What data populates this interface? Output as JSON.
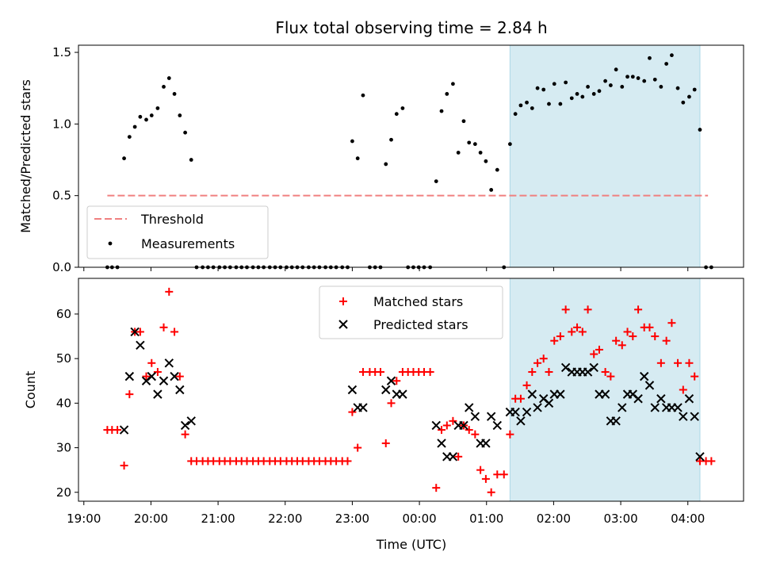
{
  "chart_data": {
    "title": "Flux total observing time = 2.84 h",
    "xlabel": "Time (UTC)",
    "x_tick_labels": [
      "19:00",
      "20:00",
      "21:00",
      "22:00",
      "23:00",
      "00:00",
      "01:00",
      "02:00",
      "03:00",
      "04:00"
    ],
    "x_ticks_hours": [
      19,
      20,
      21,
      22,
      23,
      24,
      25,
      26,
      27,
      28
    ],
    "xlim_hours": [
      18.92,
      28.83
    ],
    "highlight_span_hours": [
      25.35,
      28.18
    ],
    "highlight_color": "#add8e6",
    "panels": [
      {
        "type": "scatter",
        "ylabel": "Matched/Predicted stars",
        "ylim": [
          0,
          1.55
        ],
        "y_ticks": [
          0.0,
          0.5,
          1.0,
          1.5
        ],
        "y_tick_labels": [
          "0.0",
          "0.5",
          "1.0",
          "1.5"
        ],
        "legend_position": "lower-left",
        "threshold": {
          "name": "Threshold",
          "value": 0.5,
          "x_range_hours": [
            19.35,
            28.3
          ],
          "color": "#f08080"
        },
        "series": [
          {
            "name": "Measurements",
            "color": "#000000",
            "marker": "dot",
            "x_hours": [
              19.35,
              19.42,
              19.5,
              19.6,
              19.68,
              19.76,
              19.84,
              19.93,
              20.01,
              20.1,
              20.19,
              20.27,
              20.35,
              20.43,
              20.51,
              20.6,
              20.68,
              20.77,
              20.85,
              20.93,
              21.02,
              21.1,
              21.18,
              21.27,
              21.35,
              21.43,
              21.52,
              21.6,
              21.68,
              21.77,
              21.85,
              21.93,
              22.02,
              22.1,
              22.18,
              22.26,
              22.35,
              22.43,
              22.51,
              22.6,
              22.68,
              22.76,
              22.85,
              22.93,
              23.0,
              23.08,
              23.16,
              23.26,
              23.34,
              23.42,
              23.5,
              23.58,
              23.66,
              23.75,
              23.83,
              23.91,
              23.99,
              24.07,
              24.16,
              24.25,
              24.33,
              24.41,
              24.5,
              24.58,
              24.66,
              24.74,
              24.83,
              24.91,
              24.99,
              25.07,
              25.16,
              25.26,
              25.35,
              25.43,
              25.51,
              25.6,
              25.68,
              25.76,
              25.85,
              25.93,
              26.01,
              26.1,
              26.18,
              26.27,
              26.35,
              26.43,
              26.51,
              26.6,
              26.68,
              26.77,
              26.85,
              26.93,
              27.02,
              27.1,
              27.18,
              27.26,
              27.35,
              27.43,
              27.51,
              27.6,
              27.68,
              27.76,
              27.85,
              27.93,
              28.02,
              28.1,
              28.18,
              28.27,
              28.35
            ],
            "y": [
              0,
              0,
              0,
              0.76,
              0.91,
              0.98,
              1.05,
              1.03,
              1.06,
              1.11,
              1.26,
              1.32,
              1.21,
              1.06,
              0.94,
              0.75,
              0,
              0,
              0,
              0,
              0,
              0,
              0,
              0,
              0,
              0,
              0,
              0,
              0,
              0,
              0,
              0,
              0,
              0,
              0,
              0,
              0,
              0,
              0,
              0,
              0,
              0,
              0,
              0,
              0.88,
              0.76,
              1.2,
              0,
              0,
              0,
              0.72,
              0.89,
              1.07,
              1.11,
              0,
              0,
              0,
              0,
              0,
              0.6,
              1.09,
              1.21,
              1.28,
              0.8,
              1.02,
              0.87,
              0.86,
              0.8,
              0.74,
              0.54,
              0.68,
              0,
              0.86,
              1.07,
              1.13,
              1.15,
              1.11,
              1.25,
              1.24,
              1.14,
              1.28,
              1.14,
              1.29,
              1.18,
              1.21,
              1.19,
              1.26,
              1.21,
              1.23,
              1.3,
              1.27,
              1.38,
              1.26,
              1.33,
              1.33,
              1.32,
              1.3,
              1.46,
              1.31,
              1.26,
              1.42,
              1.48,
              1.25,
              1.15,
              1.19,
              1.24,
              0.96,
              0,
              0
            ]
          }
        ]
      },
      {
        "type": "scatter",
        "ylabel": "Count",
        "ylim": [
          18,
          68
        ],
        "y_ticks": [
          20,
          30,
          40,
          50,
          60
        ],
        "y_tick_labels": [
          "20",
          "30",
          "40",
          "50",
          "60"
        ],
        "legend_position": "top-center",
        "series": [
          {
            "name": "Matched stars",
            "color": "#ff0000",
            "marker": "plus",
            "x_hours": [
              19.35,
              19.42,
              19.5,
              19.6,
              19.68,
              19.76,
              19.84,
              19.93,
              20.01,
              20.1,
              20.19,
              20.27,
              20.35,
              20.43,
              20.51,
              20.6,
              20.68,
              20.77,
              20.85,
              20.93,
              21.02,
              21.1,
              21.18,
              21.27,
              21.35,
              21.43,
              21.52,
              21.6,
              21.68,
              21.77,
              21.85,
              21.93,
              22.02,
              22.1,
              22.18,
              22.26,
              22.35,
              22.43,
              22.51,
              22.6,
              22.68,
              22.76,
              22.85,
              22.93,
              23.0,
              23.08,
              23.16,
              23.26,
              23.34,
              23.42,
              23.5,
              23.58,
              23.66,
              23.75,
              23.83,
              23.91,
              23.99,
              24.07,
              24.16,
              24.25,
              24.33,
              24.41,
              24.5,
              24.58,
              24.66,
              24.74,
              24.83,
              24.91,
              24.99,
              25.07,
              25.16,
              25.26,
              25.35,
              25.43,
              25.51,
              25.6,
              25.68,
              25.76,
              25.85,
              25.93,
              26.01,
              26.1,
              26.18,
              26.27,
              26.35,
              26.43,
              26.51,
              26.6,
              26.68,
              26.77,
              26.85,
              26.93,
              27.02,
              27.1,
              27.18,
              27.26,
              27.35,
              27.43,
              27.51,
              27.6,
              27.68,
              27.76,
              27.85,
              27.93,
              28.02,
              28.1,
              28.18,
              28.27,
              28.35
            ],
            "y": [
              34,
              34,
              34,
              26,
              42,
              56,
              56,
              46,
              49,
              47,
              57,
              65,
              56,
              46,
              33,
              27,
              27,
              27,
              27,
              27,
              27,
              27,
              27,
              27,
              27,
              27,
              27,
              27,
              27,
              27,
              27,
              27,
              27,
              27,
              27,
              27,
              27,
              27,
              27,
              27,
              27,
              27,
              27,
              27,
              38,
              30,
              47,
              47,
              47,
              47,
              31,
              40,
              45,
              47,
              47,
              47,
              47,
              47,
              47,
              21,
              34,
              35,
              36,
              28,
              35,
              34,
              33,
              25,
              23,
              20,
              24,
              24,
              33,
              41,
              41,
              44,
              47,
              49,
              50,
              47,
              54,
              55,
              61,
              56,
              57,
              56,
              61,
              51,
              52,
              47,
              46,
              54,
              53,
              56,
              55,
              61,
              57,
              57,
              55,
              49,
              54,
              58,
              49,
              43,
              49,
              46,
              27,
              27,
              27
            ],
            "legend_note": ""
          },
          {
            "name": "Predicted stars",
            "color": "#000000",
            "marker": "x",
            "x_hours": [
              19.6,
              19.68,
              19.76,
              19.84,
              19.93,
              20.01,
              20.1,
              20.19,
              20.27,
              20.35,
              20.43,
              20.51,
              20.6,
              23.0,
              23.08,
              23.16,
              23.5,
              23.58,
              23.66,
              23.75,
              24.25,
              24.33,
              24.41,
              24.5,
              24.58,
              24.66,
              24.74,
              24.83,
              24.91,
              24.99,
              25.07,
              25.16,
              25.35,
              25.43,
              25.51,
              25.6,
              25.68,
              25.76,
              25.85,
              25.93,
              26.01,
              26.1,
              26.18,
              26.27,
              26.35,
              26.43,
              26.51,
              26.6,
              26.68,
              26.77,
              26.85,
              26.93,
              27.02,
              27.1,
              27.18,
              27.26,
              27.35,
              27.43,
              27.51,
              27.6,
              27.68,
              27.76,
              27.85,
              27.93,
              28.02,
              28.1,
              28.18
            ],
            "y": [
              34,
              46,
              56,
              53,
              45,
              46,
              42,
              45,
              49,
              46,
              43,
              35,
              36,
              43,
              39,
              39,
              43,
              45,
              42,
              42,
              35,
              31,
              28,
              28,
              35,
              35,
              39,
              37,
              31,
              31,
              37,
              35,
              38,
              38,
              36,
              38,
              42,
              39,
              41,
              40,
              42,
              42,
              48,
              47,
              47,
              47,
              47,
              48,
              42,
              42,
              36,
              36,
              39,
              42,
              42,
              41,
              46,
              44,
              39,
              41,
              39,
              39,
              39,
              37,
              41,
              37,
              28
            ]
          }
        ]
      }
    ]
  }
}
